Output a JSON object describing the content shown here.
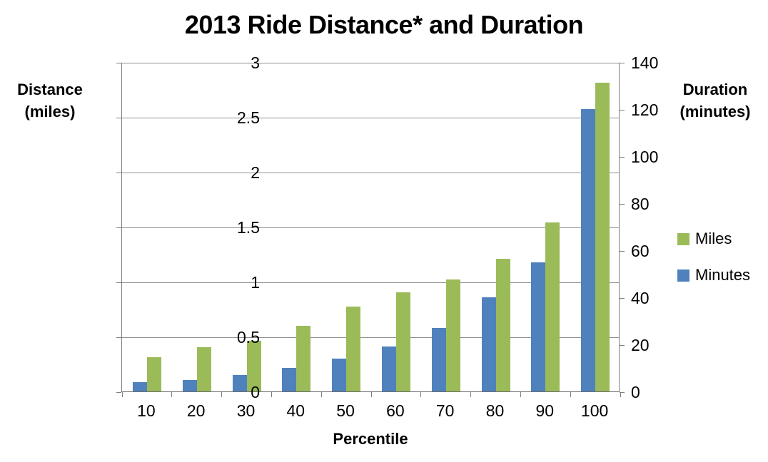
{
  "chart_data": {
    "type": "bar",
    "title": "2013 Ride Distance* and Duration",
    "xlabel": "Percentile",
    "categories": [
      10,
      20,
      30,
      40,
      50,
      60,
      70,
      80,
      90,
      100
    ],
    "series": [
      {
        "name": "Miles",
        "axis": "left",
        "color": "#9BBB59",
        "values": [
          0.31,
          0.4,
          0.46,
          0.6,
          0.77,
          0.9,
          1.02,
          1.21,
          1.54,
          2.81
        ]
      },
      {
        "name": "Minutes",
        "axis": "right",
        "color": "#4F81BD",
        "values": [
          4,
          5,
          7,
          10,
          14,
          19,
          27,
          40,
          55,
          120
        ]
      }
    ],
    "left_axis": {
      "title_lines": [
        "Distance",
        "(miles)"
      ],
      "min": 0,
      "max": 3,
      "ticks": [
        "0",
        "0.5",
        "1",
        "1.5",
        "2",
        "2.5",
        "3"
      ]
    },
    "right_axis": {
      "title_lines": [
        "Duration",
        "(minutes)"
      ],
      "min": 0,
      "max": 140,
      "ticks": [
        "0",
        "20",
        "40",
        "60",
        "80",
        "100",
        "120",
        "140"
      ]
    },
    "grid": true,
    "legend_position": "right",
    "colors": {
      "gridline": "#8f8f8f",
      "axis_line": "#7f7f7f",
      "text": "#000000"
    }
  }
}
